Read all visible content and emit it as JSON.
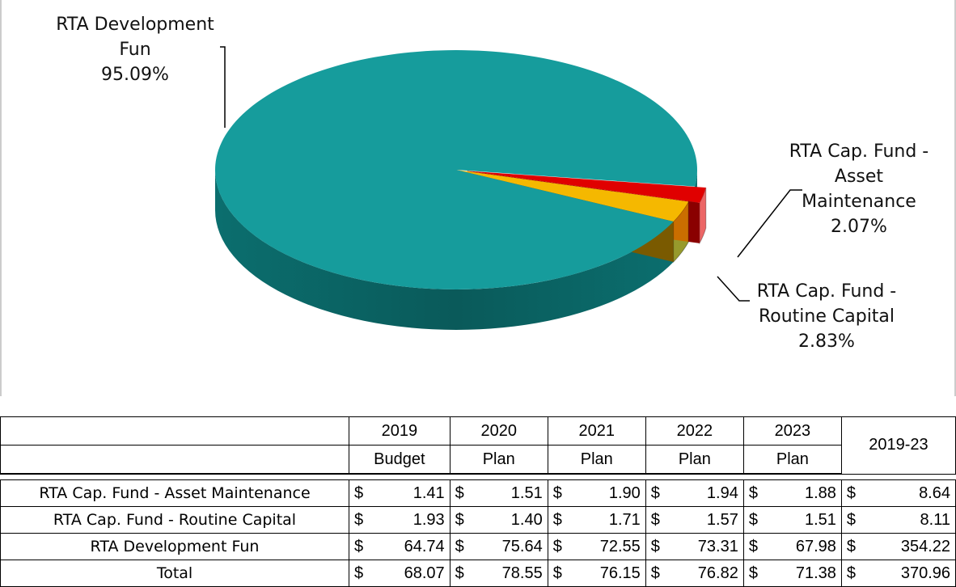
{
  "chart_data": {
    "type": "pie",
    "categories": [
      "RTA Cap. Fund - Asset Maintenance",
      "RTA Cap. Fund - Routine Capital",
      "RTA Development Fun"
    ],
    "values": [
      2.07,
      2.83,
      95.09
    ],
    "value_labels": [
      "2.07%",
      "2.83%",
      "95.09%"
    ],
    "colors": [
      "#e00000",
      "#f5b800",
      "#169c9c"
    ]
  },
  "table": {
    "currency": "$",
    "header": [
      [
        "2019",
        "2020",
        "2021",
        "2022",
        "2023",
        "2019-23"
      ],
      [
        "Budget",
        "Plan",
        "Plan",
        "Plan",
        "Plan"
      ]
    ],
    "rows": [
      {
        "label": "RTA Cap. Fund - Asset Maintenance",
        "values": [
          "1.41",
          "1.51",
          "1.90",
          "1.94",
          "1.88",
          "8.64"
        ]
      },
      {
        "label": "RTA Cap. Fund - Routine Capital",
        "values": [
          "1.93",
          "1.40",
          "1.71",
          "1.57",
          "1.51",
          "8.11"
        ]
      },
      {
        "label": "RTA Development Fun",
        "values": [
          "64.74",
          "75.64",
          "72.55",
          "73.31",
          "67.98",
          "354.22"
        ]
      },
      {
        "label": "Total",
        "values": [
          "68.07",
          "78.55",
          "76.15",
          "76.82",
          "71.38",
          "370.96"
        ]
      }
    ]
  }
}
